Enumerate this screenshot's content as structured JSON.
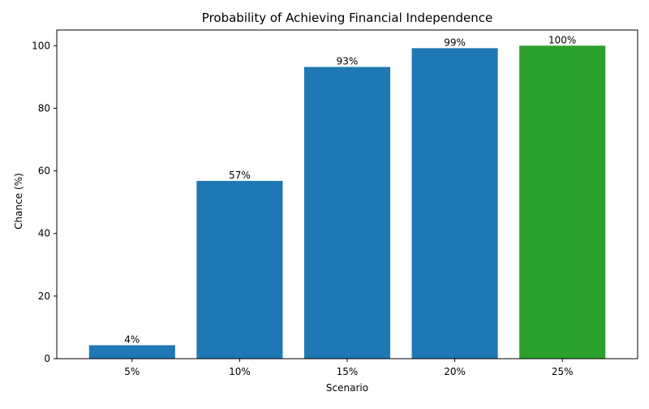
{
  "chart_data": {
    "type": "bar",
    "title": "Probability of Achieving Financial Independence",
    "xlabel": "Scenario",
    "ylabel": "Chance (%)",
    "categories": [
      "5%",
      "10%",
      "15%",
      "20%",
      "25%"
    ],
    "values": [
      4.3,
      56.8,
      93.2,
      99.2,
      100.0
    ],
    "value_labels": [
      "4%",
      "57%",
      "93%",
      "99%",
      "100%"
    ],
    "ylim": [
      0,
      105
    ],
    "yticks": [
      0,
      20,
      40,
      60,
      80,
      100
    ],
    "grid": false,
    "colors": {
      "bar": "#1f77b4",
      "highlight": "#2ca02c",
      "highlight_index": 4
    }
  }
}
